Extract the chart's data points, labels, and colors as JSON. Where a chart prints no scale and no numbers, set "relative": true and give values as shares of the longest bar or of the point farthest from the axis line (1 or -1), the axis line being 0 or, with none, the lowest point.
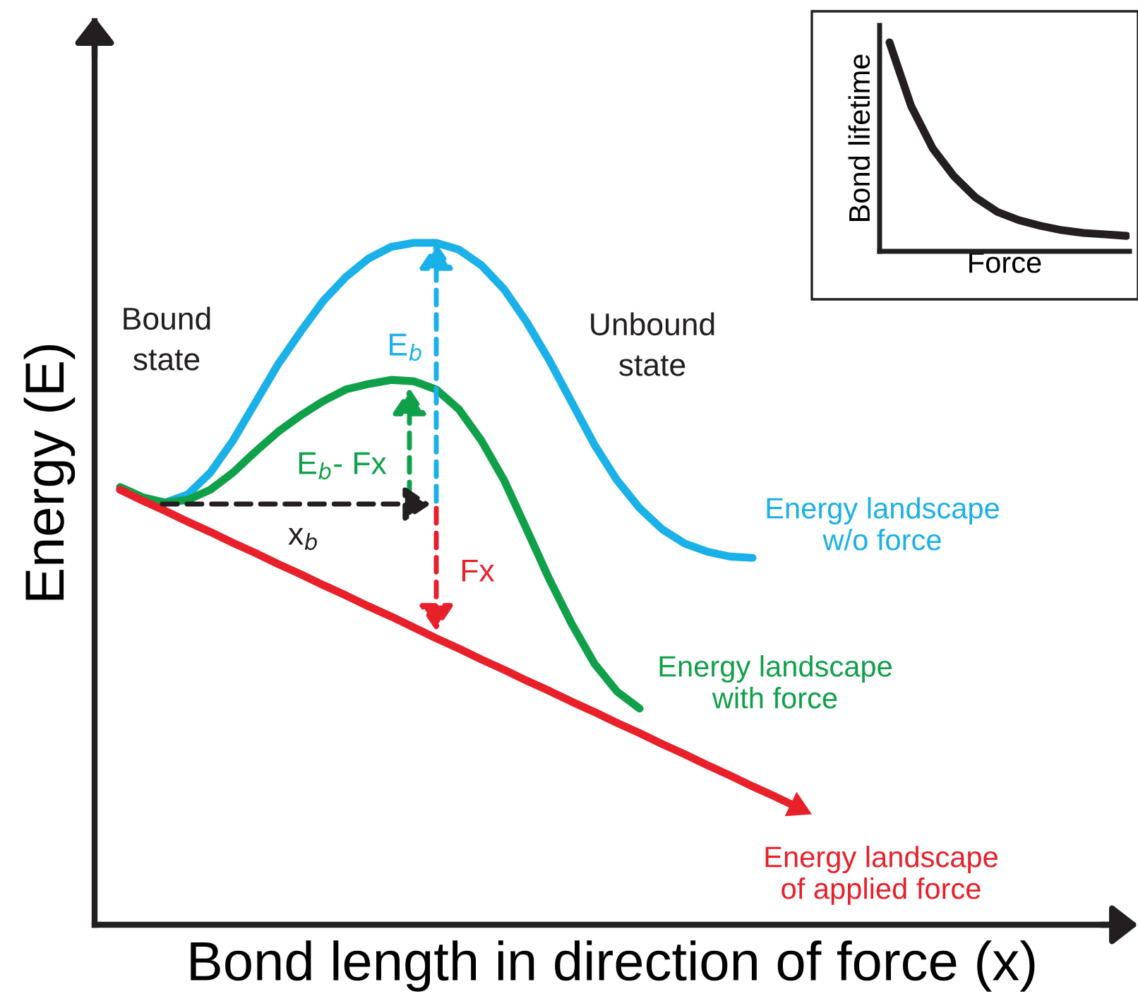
{
  "chart_data": [
    {
      "type": "line",
      "relative": true,
      "xlabel": "Bond length in direction of force (x)",
      "ylabel": "Energy (E)",
      "tick_labels": false,
      "line_style": "solid",
      "categories": [
        null,
        null,
        null,
        null,
        null,
        null,
        null,
        null,
        null,
        null,
        null,
        null,
        null,
        null,
        null,
        null,
        null,
        null,
        null,
        null,
        null,
        null,
        null,
        null,
        null,
        null,
        null,
        null,
        null,
        null,
        null
      ],
      "series": [
        {
          "name": "Energy landscape\nw/o force",
          "color": "#1ab0e8",
          "values": [
            0.638,
            0.625,
            0.619,
            0.631,
            0.663,
            0.71,
            0.766,
            0.822,
            0.87,
            0.915,
            0.95,
            0.977,
            0.994,
            1.0,
            1.0,
            0.99,
            0.967,
            0.932,
            0.884,
            0.828,
            0.766,
            0.704,
            0.652,
            0.611,
            0.58,
            0.559,
            0.547,
            0.54,
            0.538,
            null,
            null
          ]
        },
        {
          "name": "Energy landscape\nwith force",
          "color": "#10a04a",
          "values": [
            0.642,
            0.627,
            0.619,
            0.623,
            0.638,
            0.663,
            0.694,
            0.723,
            0.747,
            0.768,
            0.785,
            0.793,
            0.799,
            0.797,
            0.785,
            0.756,
            0.71,
            0.652,
            0.58,
            0.507,
            0.441,
            0.383,
            0.342,
            0.317,
            null,
            null,
            null,
            null,
            null,
            null,
            null
          ]
        },
        {
          "name": "Energy landscape\nof applied force",
          "color": "#e8202a",
          "values": [
            0.638,
            0.622,
            0.607,
            0.591,
            0.576,
            0.56,
            0.545,
            0.529,
            0.514,
            0.498,
            0.483,
            0.467,
            0.452,
            0.436,
            0.42,
            0.405,
            0.389,
            0.374,
            0.358,
            0.343,
            0.327,
            0.312,
            0.296,
            0.281,
            0.265,
            0.25,
            0.234,
            0.219,
            0.203,
            0.188,
            0.172
          ]
        }
      ],
      "annotations": [
        "Bound state",
        "Unbound state",
        "E$_{b}$",
        "E$_{b}$- Fx",
        "x$_{b}$",
        "Fx"
      ]
    },
    {
      "type": "line",
      "relative": true,
      "xlabel": "Force",
      "ylabel": "Bond lifetime",
      "tick_labels": false,
      "line_style": "solid",
      "categories": [
        null,
        null,
        null,
        null,
        null,
        null,
        null,
        null,
        null,
        null,
        null,
        null
      ],
      "series": [
        {
          "color": "#231f20",
          "values": [
            1.0,
            0.696,
            0.493,
            0.358,
            0.257,
            0.189,
            0.149,
            0.122,
            0.101,
            0.088,
            0.081,
            0.074
          ]
        }
      ]
    }
  ]
}
